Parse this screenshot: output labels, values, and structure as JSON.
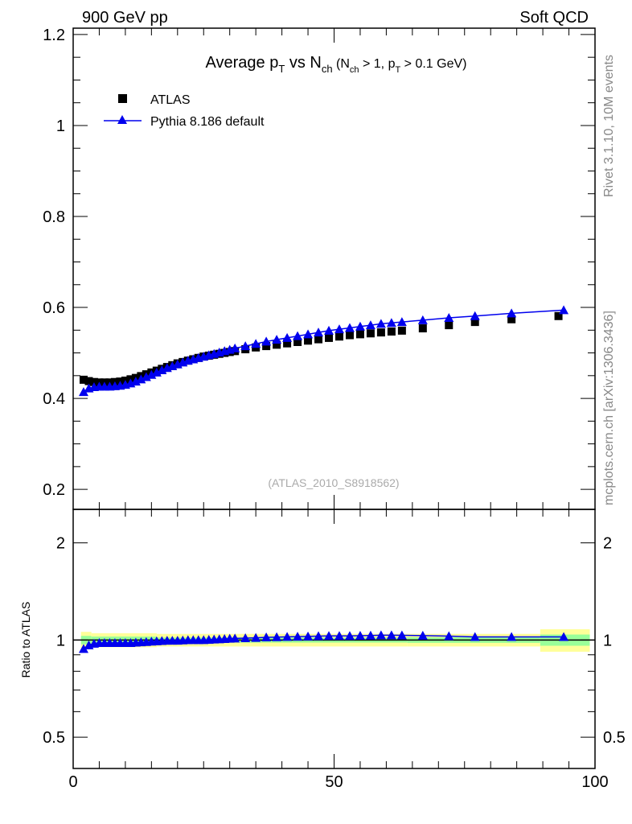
{
  "header": {
    "left": "900 GeV pp",
    "right": "Soft QCD"
  },
  "side_text": {
    "top": "Rivet 3.1.10,  10M events",
    "bottom": "mcplots.cern.ch [arXiv:1306.3436]"
  },
  "chart_data": {
    "type": "scatter",
    "title_parts": {
      "a": "Average p",
      "a_sub": "T",
      "b": " vs N",
      "b_sub": "ch",
      "c": " (N",
      "c_sub": "ch",
      "d": " > 1, p",
      "d_sub": "T",
      "e": " > 0.1 GeV)"
    },
    "analysis_label": "(ATLAS_2010_S8918562)",
    "xlim": [
      0,
      100
    ],
    "ylim": [
      0.156,
      1.214
    ],
    "x_ticks": [
      "0",
      "50",
      "100"
    ],
    "y_ticks": [
      "0.2",
      "0.4",
      "0.6",
      "0.8",
      "1",
      "1.2"
    ],
    "legend": {
      "placement": "top-left",
      "entries": [
        "ATLAS",
        "Pythia 8.186 default"
      ]
    },
    "colors": {
      "data": "#000000",
      "mc": "#0000ee",
      "band_total": "#ffff99",
      "band_stat": "#99ff99"
    },
    "series": [
      {
        "name": "ATLAS",
        "marker": "square",
        "x": [
          2,
          3,
          4,
          5,
          6,
          7,
          8,
          9,
          10,
          11,
          12,
          13,
          14,
          15,
          16,
          17,
          18,
          19,
          20,
          21,
          22,
          23,
          24,
          25,
          26,
          27,
          28,
          29,
          30,
          31,
          33,
          35,
          37,
          39,
          41,
          43,
          45,
          47,
          49,
          51,
          53,
          55,
          57,
          59,
          61,
          63,
          67,
          72,
          77,
          84,
          93
        ],
        "y": [
          0.441,
          0.438,
          0.436,
          0.435,
          0.435,
          0.435,
          0.436,
          0.437,
          0.439,
          0.442,
          0.445,
          0.449,
          0.453,
          0.457,
          0.461,
          0.465,
          0.469,
          0.473,
          0.477,
          0.48,
          0.483,
          0.486,
          0.489,
          0.492,
          0.494,
          0.496,
          0.498,
          0.5,
          0.502,
          0.504,
          0.508,
          0.512,
          0.515,
          0.518,
          0.521,
          0.524,
          0.527,
          0.53,
          0.533,
          0.536,
          0.539,
          0.541,
          0.543,
          0.545,
          0.547,
          0.549,
          0.554,
          0.561,
          0.568,
          0.574,
          0.581
        ]
      },
      {
        "name": "Pythia 8.186 default",
        "marker": "triangle",
        "x": [
          2,
          3,
          4,
          5,
          6,
          7,
          8,
          9,
          10,
          11,
          12,
          13,
          14,
          15,
          16,
          17,
          18,
          19,
          20,
          21,
          22,
          23,
          24,
          25,
          26,
          27,
          28,
          29,
          30,
          31,
          33,
          35,
          37,
          39,
          41,
          43,
          45,
          47,
          49,
          51,
          53,
          55,
          57,
          59,
          61,
          63,
          67,
          72,
          77,
          84,
          94
        ],
        "y": [
          0.414,
          0.422,
          0.425,
          0.426,
          0.426,
          0.426,
          0.427,
          0.428,
          0.43,
          0.433,
          0.437,
          0.442,
          0.447,
          0.452,
          0.457,
          0.462,
          0.467,
          0.471,
          0.475,
          0.479,
          0.483,
          0.486,
          0.489,
          0.492,
          0.495,
          0.498,
          0.501,
          0.504,
          0.507,
          0.51,
          0.515,
          0.52,
          0.525,
          0.529,
          0.533,
          0.537,
          0.541,
          0.545,
          0.549,
          0.552,
          0.555,
          0.558,
          0.561,
          0.564,
          0.566,
          0.568,
          0.572,
          0.577,
          0.581,
          0.587,
          0.594
        ]
      }
    ],
    "ratio": {
      "ylabel": "Ratio to ATLAS",
      "ylim": [
        0.4,
        2.54
      ],
      "scale": "log",
      "y_ticks": [
        "0.5",
        "1",
        "2"
      ],
      "bands": [
        {
          "x0": 1.5,
          "x1": 3.5,
          "stat": 0.03,
          "total": 0.06
        },
        {
          "x0": 3.5,
          "x1": 16,
          "stat": 0.025,
          "total": 0.05
        },
        {
          "x0": 16,
          "x1": 64,
          "stat": 0.018,
          "total": 0.045
        },
        {
          "x0": 64,
          "x1": 89.5,
          "stat": 0.02,
          "total": 0.045
        },
        {
          "x0": 89.5,
          "x1": 99,
          "stat": 0.04,
          "total": 0.08
        }
      ]
    }
  }
}
